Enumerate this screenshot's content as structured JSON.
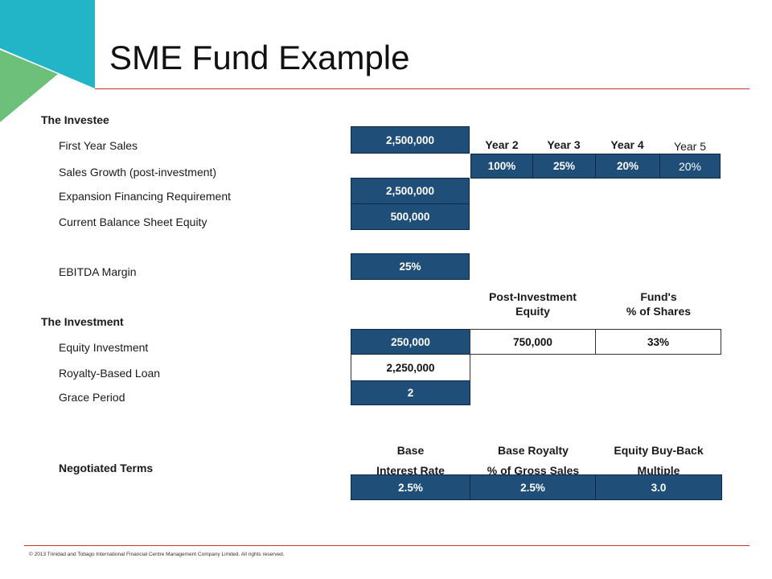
{
  "title": "SME Fund Example",
  "colors": {
    "accent_cell": "#1f4e79",
    "rule": "#c0392b",
    "logo_teal": "#22b5c8",
    "logo_green": "#6cc07a"
  },
  "investee": {
    "heading": "The Investee",
    "first_year_sales_label": "First Year Sales",
    "first_year_sales_value": "2,500,000",
    "sales_growth_label": "Sales Growth (post-investment)",
    "expansion_label": "Expansion Financing Requirement",
    "expansion_value": "2,500,000",
    "equity_label": "Current Balance Sheet Equity",
    "equity_value": "500,000",
    "ebitda_label": "EBITDA Margin",
    "ebitda_value": "25%",
    "years": [
      "Year 2",
      "Year 3",
      "Year 4",
      "Year 5"
    ],
    "growth": [
      "100%",
      "25%",
      "20%",
      "20%"
    ]
  },
  "investment": {
    "heading": "The Investment",
    "post_equity_header": [
      "Post-Investment",
      "Equity"
    ],
    "fund_shares_header": [
      "Fund's",
      "% of Shares"
    ],
    "equity_inv_label": "Equity Investment",
    "equity_inv_value": "250,000",
    "post_equity_value": "750,000",
    "fund_shares_value": "33%",
    "royalty_loan_label": "Royalty-Based Loan",
    "royalty_loan_value": "2,250,000",
    "grace_label": "Grace Period",
    "grace_value": "2"
  },
  "terms": {
    "label": "Negotiated Terms",
    "headers": [
      [
        "Base",
        "Interest Rate"
      ],
      [
        "Base Royalty",
        "% of Gross Sales"
      ],
      [
        "Equity Buy-Back",
        "Multiple"
      ]
    ],
    "values": [
      "2.5%",
      "2.5%",
      "3.0"
    ]
  },
  "footer": "© 2013 Trinidad and Tobago International Financial Centre Management Company Limited. All rights reserved."
}
